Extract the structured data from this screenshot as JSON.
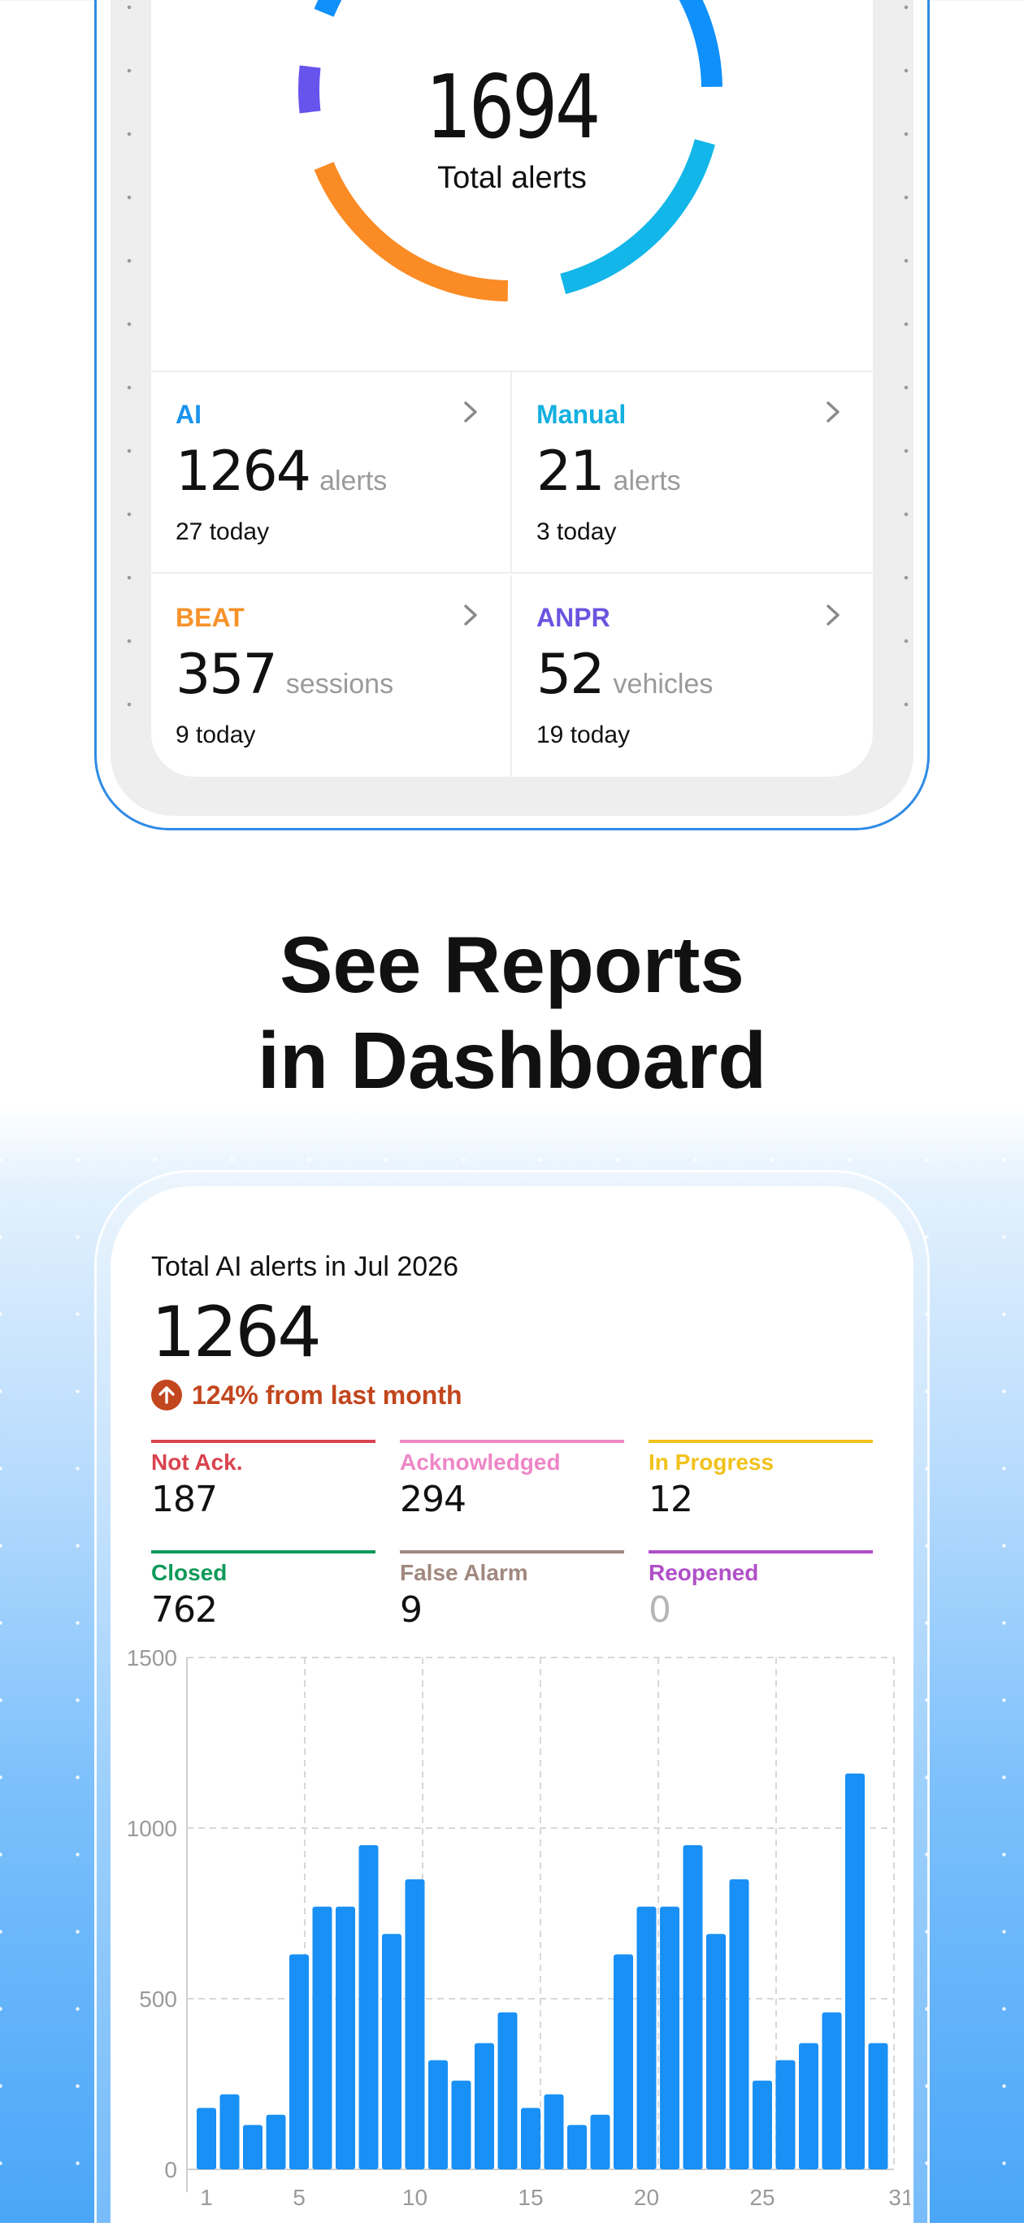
{
  "summary": {
    "total": "1694",
    "caption": "Total alerts",
    "donut_colors": [
      "#0f90fb",
      "#13b6e8",
      "#fb8b24",
      "#6654ed"
    ],
    "donut_fractions": [
      0.48,
      0.21,
      0.23,
      0.08
    ],
    "categories": [
      {
        "name": "AI",
        "color": "#1a93ee",
        "value": "1264",
        "unit": "alerts",
        "today": "27 today",
        "icon": "chevron-right-icon"
      },
      {
        "name": "Manual",
        "color": "#13b0e0",
        "value": "21",
        "unit": "alerts",
        "today": "3 today",
        "icon": "chevron-right-icon"
      },
      {
        "name": "BEAT",
        "color": "#f7922a",
        "value": "357",
        "unit": "sessions",
        "today": "9 today",
        "icon": "chevron-right-icon"
      },
      {
        "name": "ANPR",
        "color": "#6a55e0",
        "value": "52",
        "unit": "vehicles",
        "today": "19 today",
        "icon": "chevron-right-icon"
      }
    ]
  },
  "heading": {
    "line1": "See Reports",
    "line2": "in Dashboard"
  },
  "report": {
    "title": "Total AI alerts in Jul 2026",
    "total": "1264",
    "change": "124% from last month",
    "change_icon": "arrow-up-circle-icon",
    "change_color": "#c2461e",
    "statuses": [
      {
        "label": "Not Ack.",
        "value": "187",
        "color": "#d9434f"
      },
      {
        "label": "Acknowledged",
        "value": "294",
        "color": "#ee86c6"
      },
      {
        "label": "In Progress",
        "value": "12",
        "color": "#f1c21b"
      },
      {
        "label": "Closed",
        "value": "762",
        "color": "#0f9a5a"
      },
      {
        "label": "False Alarm",
        "value": "9",
        "color": "#a1887f"
      },
      {
        "label": "Reopened",
        "value": "0",
        "color": "#b04fc8"
      }
    ]
  },
  "chart_data": {
    "type": "bar",
    "x": [
      1,
      2,
      3,
      4,
      5,
      6,
      7,
      8,
      9,
      10,
      11,
      12,
      13,
      14,
      15,
      16,
      17,
      18,
      19,
      20,
      21,
      22,
      23,
      24,
      25,
      26,
      27,
      28,
      29,
      30,
      31
    ],
    "values": [
      180,
      220,
      130,
      160,
      630,
      770,
      770,
      950,
      690,
      850,
      320,
      260,
      370,
      460,
      180,
      220,
      130,
      160,
      630,
      770,
      770,
      950,
      690,
      850,
      260,
      320,
      370,
      460,
      1160,
      370,
      0
    ],
    "xticks": [
      "1",
      "5",
      "10",
      "15",
      "20",
      "25",
      "31"
    ],
    "yticks": [
      "0",
      "500",
      "1000",
      "1500"
    ],
    "ylim": [
      0,
      1500
    ],
    "color": "#1890f5",
    "grid": true
  }
}
